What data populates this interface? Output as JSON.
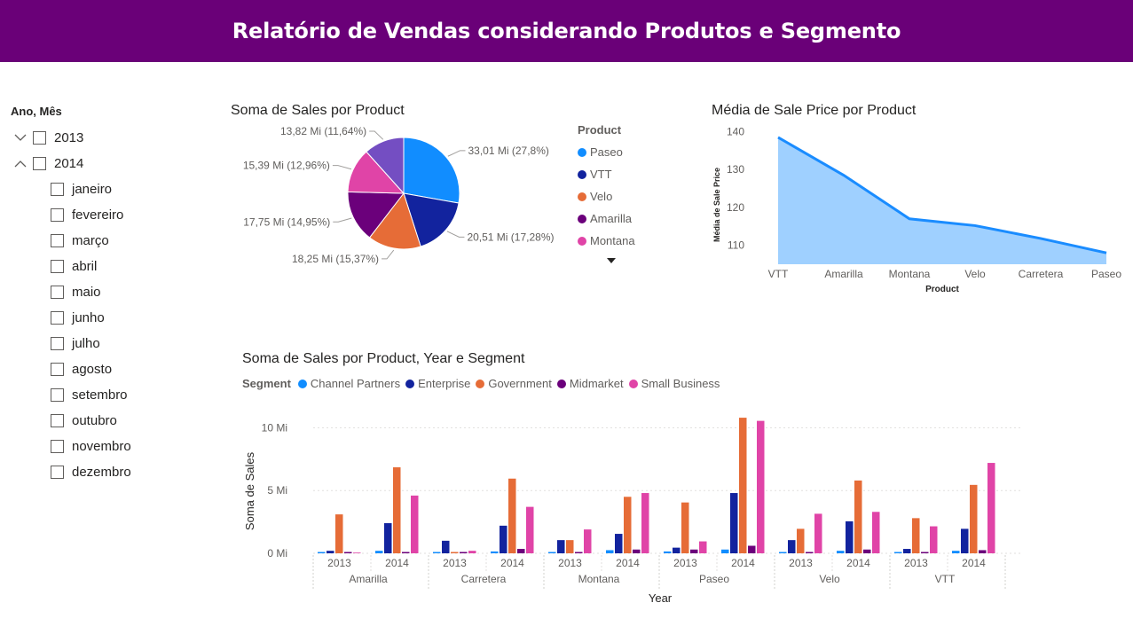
{
  "header": {
    "title": "Relatório de Vendas considerando Produtos e Segmento"
  },
  "slicer": {
    "title": "Ano, Mês",
    "years": [
      {
        "label": "2013",
        "expanded": false
      },
      {
        "label": "2014",
        "expanded": true
      }
    ],
    "months": [
      "janeiro",
      "fevereiro",
      "março",
      "abril",
      "maio",
      "junho",
      "julho",
      "agosto",
      "setembro",
      "outubro",
      "novembro",
      "dezembro"
    ]
  },
  "pie_chart": {
    "title": "Soma de Sales por Product",
    "legend_title": "Product",
    "legend_items": [
      "Paseo",
      "VTT",
      "Velo",
      "Amarilla",
      "Montana"
    ],
    "more_icon": "caret-down-icon"
  },
  "area_chart": {
    "title": "Média de Sale Price por Product"
  },
  "column_chart": {
    "title": "Soma de Sales por Product, Year e Segment",
    "legend_title": "Segment"
  },
  "colors": {
    "banner": "#6a0078",
    "channel_partners": "#118dff",
    "enterprise": "#12239e",
    "government": "#e66c37",
    "midmarket": "#6b007b",
    "small_business": "#e044a7",
    "pie_purple": "#744ec2",
    "area_fill": "#9fd0ff",
    "area_line": "#1a8cff"
  },
  "chart_data": [
    {
      "type": "pie",
      "title": "Soma de Sales por Product",
      "unit": "Mi",
      "slices": [
        {
          "name": "Paseo",
          "value": 33.01,
          "label": "33,01 Mi (27,8%)",
          "color": "#118dff"
        },
        {
          "name": "VTT",
          "value": 20.51,
          "label": "20,51 Mi (17,28%)",
          "color": "#12239e"
        },
        {
          "name": "Velo",
          "value": 18.25,
          "label": "18,25 Mi (15,37%)",
          "color": "#e66c37"
        },
        {
          "name": "Amarilla",
          "value": 17.75,
          "label": "17,75 Mi (14,95%)",
          "color": "#6b007b"
        },
        {
          "name": "Montana",
          "value": 15.39,
          "label": "15,39 Mi (12,96%)",
          "color": "#e044a7"
        },
        {
          "name": "",
          "value": 13.82,
          "label": "13,82 Mi (11,64%)",
          "color": "#744ec2"
        }
      ]
    },
    {
      "type": "area",
      "title": "Média de Sale Price por Product",
      "xlabel": "Product",
      "ylabel": "Média de Sale Price",
      "categories": [
        "VTT",
        "Amarilla",
        "Montana",
        "Velo",
        "Carretera",
        "Paseo"
      ],
      "values": [
        138.5,
        128.5,
        117.0,
        115.2,
        111.8,
        108.0
      ],
      "ylim": [
        105,
        142
      ],
      "yticks": [
        110,
        120,
        130,
        140
      ],
      "grid": false
    },
    {
      "type": "bar",
      "title": "Soma de Sales por Product, Year e Segment",
      "xlabel": "Year",
      "ylabel": "Soma de Sales",
      "unit": "Mi",
      "yticks": [
        {
          "value": 0,
          "label": "0 Mi"
        },
        {
          "value": 5,
          "label": "5 Mi"
        },
        {
          "value": 10,
          "label": "10 Mi"
        }
      ],
      "ylim": [
        0,
        11.3
      ],
      "grid": true,
      "products": [
        "Amarilla",
        "Carretera",
        "Montana",
        "Paseo",
        "Velo",
        "VTT"
      ],
      "years": [
        "2013",
        "2014"
      ],
      "series": [
        {
          "name": "Channel Partners",
          "color": "#118dff",
          "values": [
            [
              0.1,
              0.2
            ],
            [
              0.05,
              0.15
            ],
            [
              0.05,
              0.25
            ],
            [
              0.15,
              0.3
            ],
            [
              0.1,
              0.2
            ],
            [
              0.05,
              0.2
            ]
          ]
        },
        {
          "name": "Enterprise",
          "color": "#12239e",
          "values": [
            [
              0.2,
              2.4
            ],
            [
              1.0,
              2.2
            ],
            [
              1.05,
              1.55
            ],
            [
              0.45,
              4.8
            ],
            [
              1.05,
              2.55
            ],
            [
              0.35,
              1.95
            ]
          ]
        },
        {
          "name": "Government",
          "color": "#e66c37",
          "values": [
            [
              3.1,
              6.85
            ],
            [
              0.1,
              5.95
            ],
            [
              1.05,
              4.5
            ],
            [
              4.05,
              10.8
            ],
            [
              1.95,
              5.8
            ],
            [
              2.8,
              5.45
            ]
          ]
        },
        {
          "name": "Midmarket",
          "color": "#6b007b",
          "values": [
            [
              0.1,
              0.1
            ],
            [
              0.05,
              0.35
            ],
            [
              0.05,
              0.3
            ],
            [
              0.3,
              0.6
            ],
            [
              0.05,
              0.3
            ],
            [
              0.05,
              0.25
            ]
          ]
        },
        {
          "name": "Small Business",
          "color": "#e044a7",
          "values": [
            [
              0.0,
              4.6
            ],
            [
              0.2,
              3.7
            ],
            [
              1.9,
              4.8
            ],
            [
              0.95,
              10.55
            ],
            [
              3.15,
              3.3
            ],
            [
              2.15,
              7.2
            ]
          ]
        }
      ]
    }
  ]
}
